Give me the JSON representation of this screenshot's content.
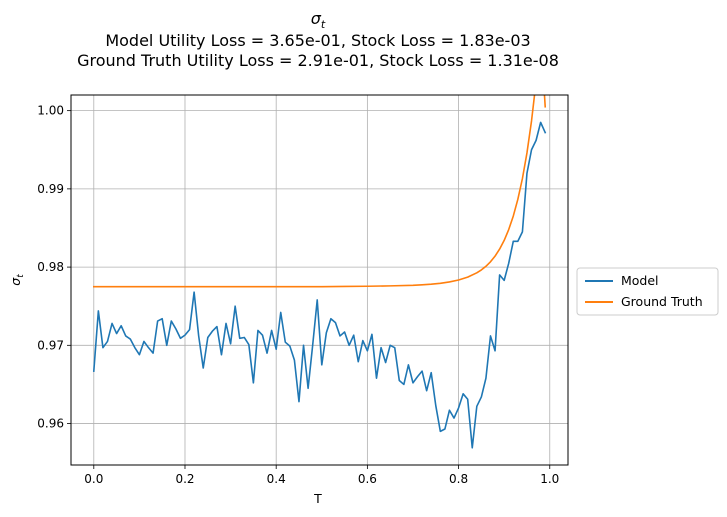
{
  "chart_data": {
    "type": "line",
    "title_symbol": "σ",
    "title_symbol_sub": "t",
    "title_lines": [
      "Model Utility Loss = 3.65e-01, Stock Loss = 1.83e-03",
      "Ground Truth Utility Loss = 2.91e-01, Stock Loss = 1.31e-08"
    ],
    "xlabel": "T",
    "ylabel_symbol": "σ",
    "ylabel_sub": "t",
    "xlim": [
      -0.05,
      1.04
    ],
    "ylim": [
      0.9547,
      1.002
    ],
    "xticks": [
      0.0,
      0.2,
      0.4,
      0.6,
      0.8,
      1.0
    ],
    "xtick_labels": [
      "0.0",
      "0.2",
      "0.4",
      "0.6",
      "0.8",
      "1.0"
    ],
    "yticks": [
      0.96,
      0.97,
      0.98,
      0.99,
      1.0
    ],
    "ytick_labels": [
      "0.96",
      "0.97",
      "0.98",
      "0.99",
      "1.00"
    ],
    "grid": true,
    "legend_position": "right-outside-center",
    "series": [
      {
        "name": "Model",
        "color": "#1f77b4",
        "x": [
          0.0,
          0.01,
          0.02,
          0.03,
          0.04,
          0.05,
          0.06,
          0.07,
          0.08,
          0.09,
          0.1,
          0.11,
          0.12,
          0.13,
          0.14,
          0.15,
          0.16,
          0.17,
          0.18,
          0.19,
          0.2,
          0.21,
          0.22,
          0.23,
          0.24,
          0.25,
          0.26,
          0.27,
          0.28,
          0.29,
          0.3,
          0.31,
          0.32,
          0.33,
          0.34,
          0.35,
          0.36,
          0.37,
          0.38,
          0.39,
          0.4,
          0.41,
          0.42,
          0.43,
          0.44,
          0.45,
          0.46,
          0.47,
          0.48,
          0.49,
          0.5,
          0.51,
          0.52,
          0.53,
          0.54,
          0.55,
          0.56,
          0.57,
          0.58,
          0.59,
          0.6,
          0.61,
          0.62,
          0.63,
          0.64,
          0.65,
          0.66,
          0.67,
          0.68,
          0.69,
          0.7,
          0.71,
          0.72,
          0.73,
          0.74,
          0.75,
          0.76,
          0.77,
          0.78,
          0.79,
          0.8,
          0.81,
          0.82,
          0.83,
          0.84,
          0.85,
          0.86,
          0.87,
          0.88,
          0.89,
          0.9,
          0.91,
          0.92,
          0.93,
          0.94,
          0.95,
          0.96,
          0.97,
          0.98,
          0.99
        ],
        "y": [
          0.9667,
          0.9744,
          0.9697,
          0.9705,
          0.9728,
          0.9715,
          0.9725,
          0.9712,
          0.9708,
          0.9697,
          0.9688,
          0.9705,
          0.9697,
          0.969,
          0.9731,
          0.9734,
          0.97,
          0.9731,
          0.9721,
          0.9709,
          0.9713,
          0.972,
          0.9768,
          0.9712,
          0.9671,
          0.971,
          0.9718,
          0.9724,
          0.9688,
          0.9728,
          0.9702,
          0.975,
          0.9709,
          0.971,
          0.9701,
          0.9652,
          0.9719,
          0.9713,
          0.969,
          0.9719,
          0.9695,
          0.9742,
          0.9704,
          0.9699,
          0.9681,
          0.9628,
          0.97,
          0.9645,
          0.97,
          0.9758,
          0.9675,
          0.9716,
          0.9734,
          0.9729,
          0.9712,
          0.9717,
          0.97,
          0.9713,
          0.9679,
          0.9706,
          0.9693,
          0.9714,
          0.9658,
          0.9697,
          0.9678,
          0.97,
          0.9697,
          0.9655,
          0.965,
          0.9675,
          0.9652,
          0.966,
          0.9667,
          0.9642,
          0.9665,
          0.9623,
          0.959,
          0.9593,
          0.9617,
          0.9607,
          0.962,
          0.9638,
          0.9631,
          0.9569,
          0.9622,
          0.9634,
          0.9658,
          0.9712,
          0.9693,
          0.979,
          0.9783,
          0.9805,
          0.9833,
          0.9833,
          0.9845,
          0.992,
          0.995,
          0.9962,
          0.9985,
          0.9972
        ]
      },
      {
        "name": "Ground Truth",
        "color": "#ff7f0e",
        "x": [
          0.0,
          0.1,
          0.2,
          0.3,
          0.4,
          0.5,
          0.55,
          0.6,
          0.65,
          0.7,
          0.72,
          0.74,
          0.76,
          0.78,
          0.8,
          0.82,
          0.84,
          0.85,
          0.86,
          0.87,
          0.88,
          0.89,
          0.9,
          0.91,
          0.92,
          0.93,
          0.94,
          0.95,
          0.96,
          0.97,
          0.98,
          0.99
        ],
        "y": [
          0.9775,
          0.9775,
          0.9775,
          0.9775,
          0.9775,
          0.9775,
          0.97753,
          0.97755,
          0.9776,
          0.97767,
          0.97773,
          0.97781,
          0.97793,
          0.9781,
          0.97835,
          0.97872,
          0.97927,
          0.97964,
          0.9801,
          0.98068,
          0.9814,
          0.9823,
          0.98341,
          0.9848,
          0.98652,
          0.98866,
          0.99131,
          0.9946,
          0.99868,
          1.0037,
          1.0099,
          1.0005
        ]
      }
    ]
  }
}
